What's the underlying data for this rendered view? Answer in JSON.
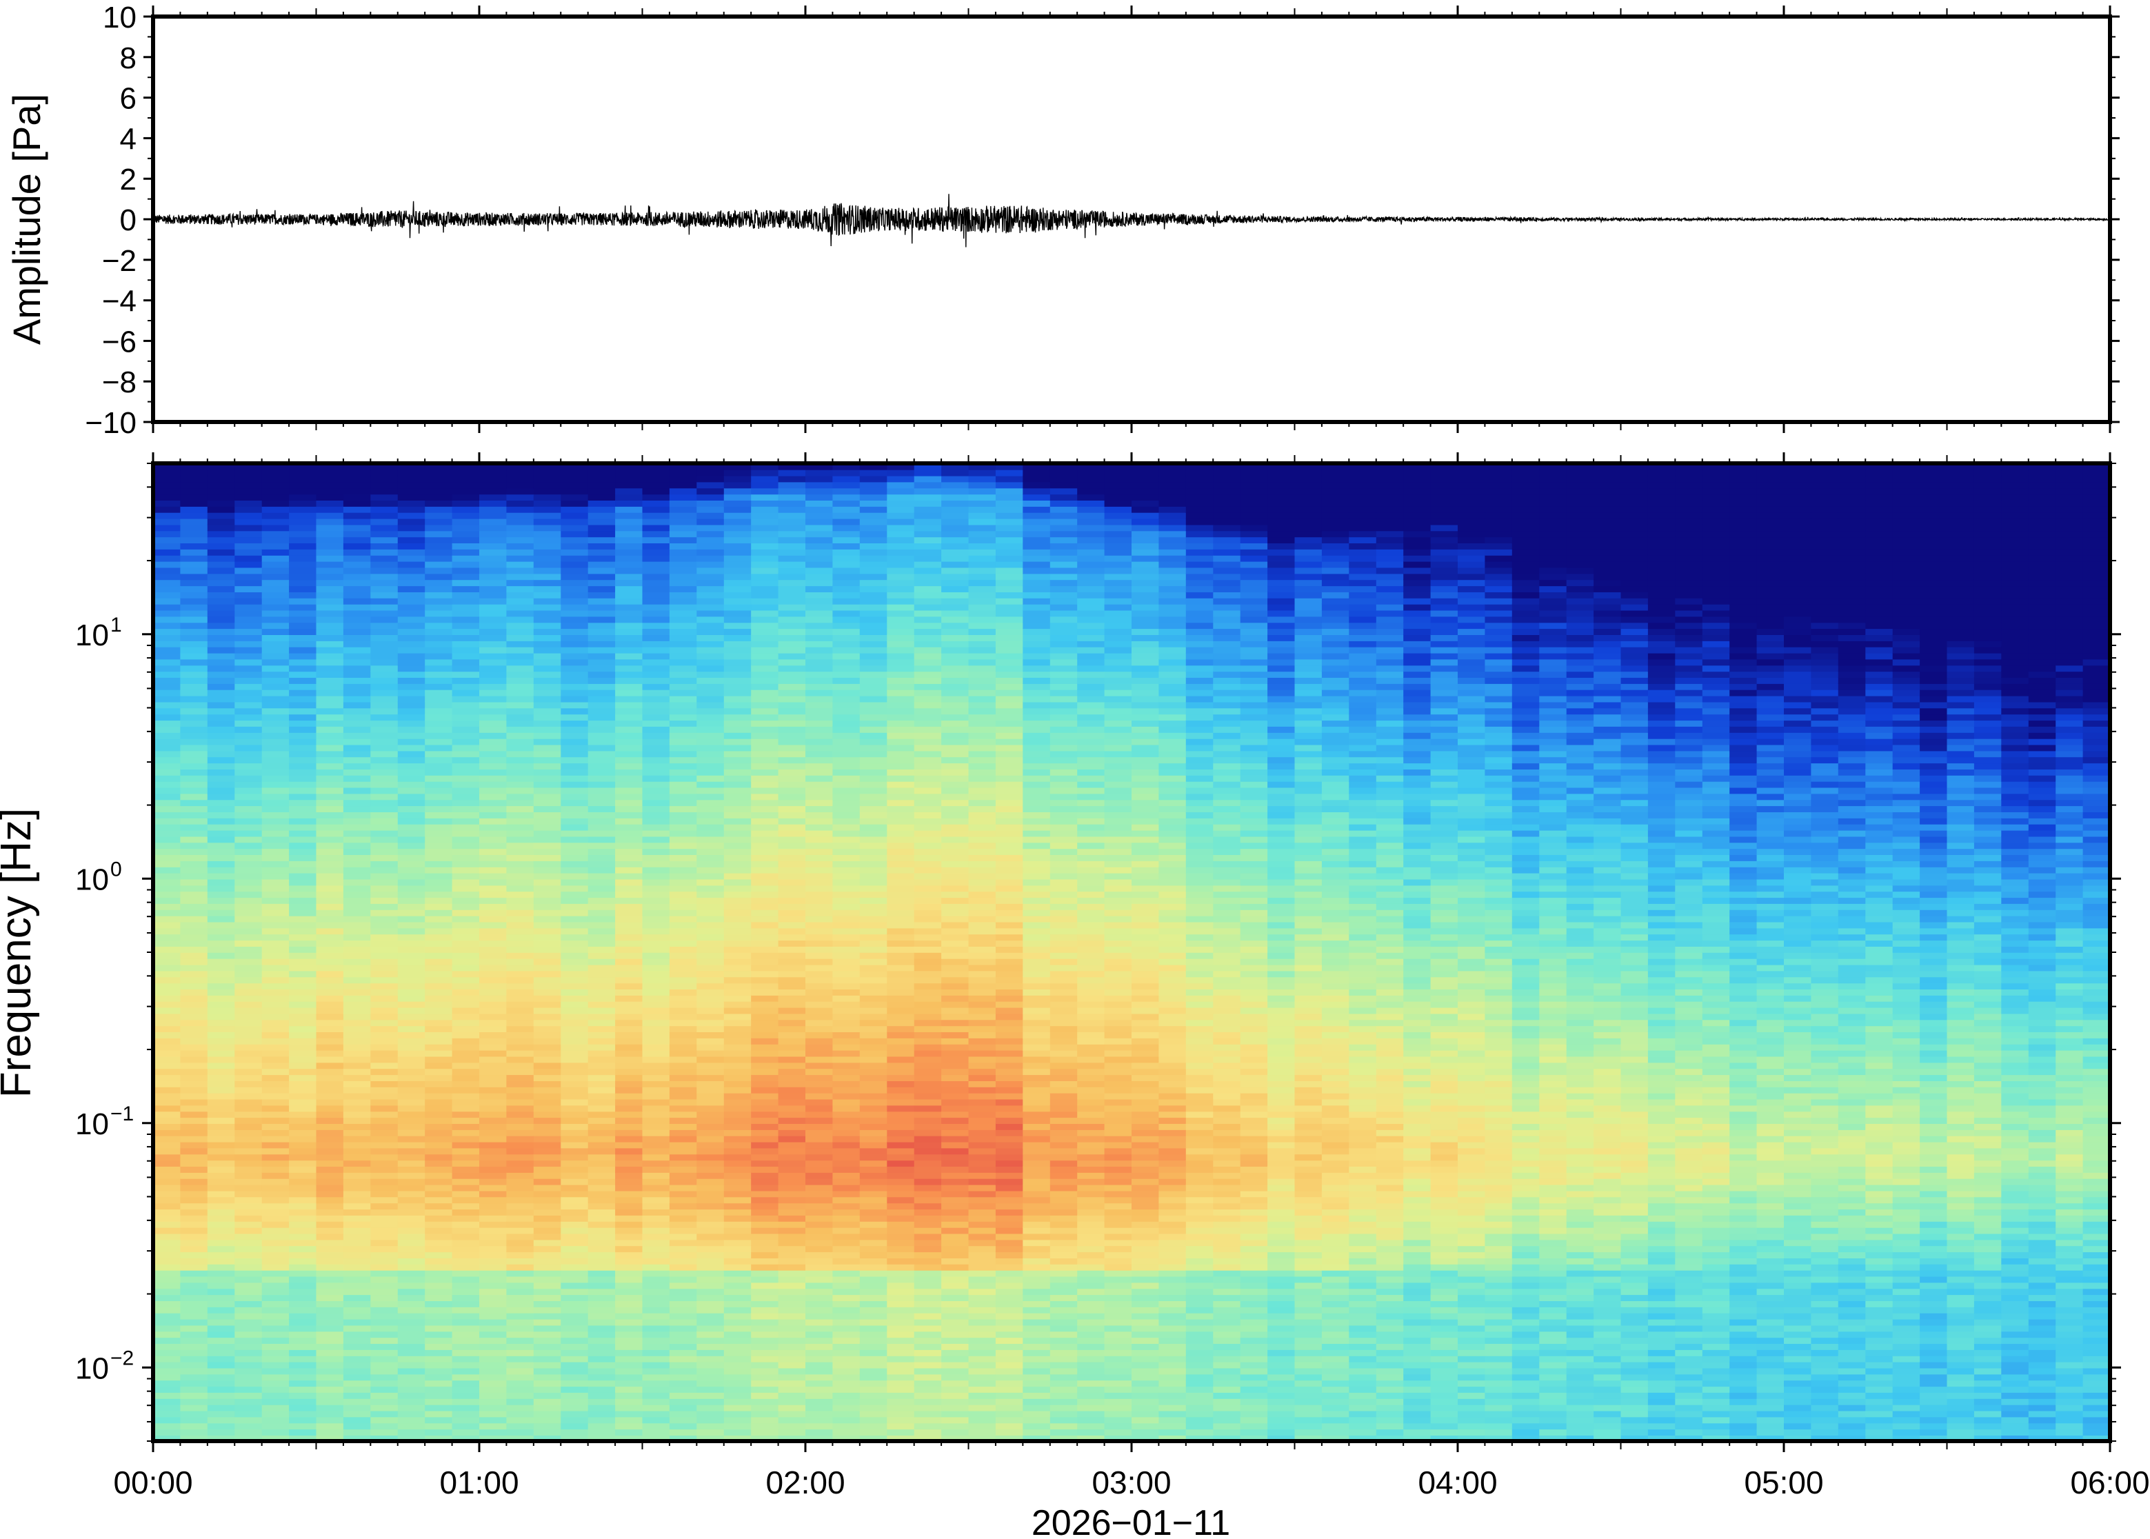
{
  "chart_data": [
    {
      "type": "line",
      "ylabel": "Amplitude [Pa]",
      "ylim": [
        -10,
        10
      ],
      "yticks": [
        10,
        8,
        6,
        4,
        2,
        0,
        -2,
        -4,
        -6,
        -8,
        -10
      ],
      "ytick_labels": [
        "10",
        "8",
        "6",
        "4",
        "2",
        "0",
        "−2",
        "−4",
        "−6",
        "−8",
        "−10"
      ],
      "xlim_hours": [
        0,
        6
      ],
      "envelope": {
        "time_hours": [
          0.0,
          0.25,
          0.5,
          0.75,
          1.0,
          1.25,
          1.5,
          1.75,
          2.0,
          2.1,
          2.25,
          2.5,
          2.65,
          2.75,
          3.0,
          3.25,
          3.5,
          4.0,
          4.5,
          5.0,
          5.5,
          6.0
        ],
        "amplitude_pa": [
          0.4,
          0.5,
          0.45,
          0.8,
          0.6,
          0.55,
          0.6,
          0.8,
          0.9,
          1.5,
          1.0,
          1.2,
          1.3,
          1.0,
          0.6,
          0.4,
          0.25,
          0.2,
          0.12,
          0.1,
          0.08,
          0.08
        ]
      },
      "line_color": "#000000",
      "grid": false
    },
    {
      "type": "heatmap",
      "ylabel": "Frequency [Hz]",
      "xlabel": "2026−01−11",
      "y_scale": "log",
      "ylim": [
        0.005,
        50
      ],
      "ytick_labels": [
        {
          "value": 10,
          "base": "10",
          "exp": "1"
        },
        {
          "value": 1,
          "base": "10",
          "exp": "0"
        },
        {
          "value": 0.1,
          "base": "10",
          "exp": "−1"
        },
        {
          "value": 0.01,
          "base": "10",
          "exp": "−2"
        }
      ],
      "xticks_hours": [
        0,
        1,
        2,
        3,
        4,
        5,
        6
      ],
      "xtick_labels": [
        "00:00",
        "01:00",
        "02:00",
        "03:00",
        "04:00",
        "05:00",
        "06:00"
      ],
      "colormap": "jet",
      "colormap_stops": [
        "#0c0b80",
        "#1040d8",
        "#2a8ff0",
        "#3fc8f0",
        "#6ee7d6",
        "#a6f0b0",
        "#e0f090",
        "#f8e080",
        "#f8c060",
        "#f89050",
        "#e85848"
      ],
      "intensity_profile": {
        "time_hours": [
          0.0,
          0.5,
          1.0,
          1.5,
          2.0,
          2.5,
          3.0,
          3.5,
          4.0,
          4.5,
          5.0,
          5.5,
          6.0
        ],
        "peak_level": [
          0.78,
          0.82,
          0.84,
          0.86,
          0.95,
          0.97,
          0.86,
          0.75,
          0.7,
          0.62,
          0.58,
          0.55,
          0.55
        ],
        "upper_cutoff_hz": [
          30,
          32,
          30,
          33,
          38,
          40,
          28,
          22,
          28,
          15,
          12,
          10,
          9
        ]
      },
      "grid": false
    }
  ]
}
